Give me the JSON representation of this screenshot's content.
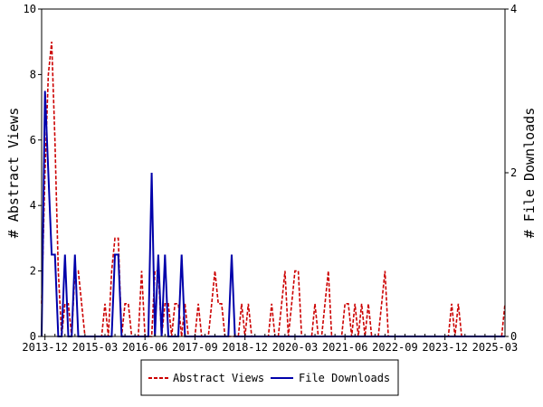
{
  "chart_data": {
    "type": "line",
    "x_tick_labels": [
      "2013-12",
      "2015-03",
      "2016-06",
      "2017-09",
      "2018-12",
      "2020-03",
      "2021-06",
      "2022-09",
      "2023-12",
      "2025-03"
    ],
    "x_range": [
      "2013-11",
      "2025-06"
    ],
    "y_left": {
      "label": "# Abstract Views",
      "range": [
        0,
        10
      ],
      "ticks": [
        0,
        2,
        4,
        6,
        8,
        10
      ]
    },
    "y_right": {
      "label": "# File Downloads",
      "range": [
        0,
        4
      ],
      "ticks": [
        0,
        2,
        4
      ]
    },
    "grid": false,
    "legend_position": "bottom",
    "series": [
      {
        "name": "Abstract Views",
        "axis": "left",
        "color": "#cc0000",
        "style": "dashed",
        "points": [
          [
            "2013-11",
            1
          ],
          [
            "2013-12",
            5
          ],
          [
            "2014-01",
            8
          ],
          [
            "2014-02",
            9
          ],
          [
            "2014-03",
            6
          ],
          [
            "2014-04",
            2
          ],
          [
            "2014-05",
            0
          ],
          [
            "2014-06",
            1
          ],
          [
            "2014-07",
            1
          ],
          [
            "2014-08",
            0
          ],
          [
            "2014-09",
            2
          ],
          [
            "2014-10",
            2
          ],
          [
            "2014-11",
            1
          ],
          [
            "2014-12",
            0
          ],
          [
            "2015-01",
            0
          ],
          [
            "2015-02",
            0
          ],
          [
            "2015-03",
            0
          ],
          [
            "2015-04",
            0
          ],
          [
            "2015-05",
            0
          ],
          [
            "2015-06",
            1
          ],
          [
            "2015-07",
            0
          ],
          [
            "2015-08",
            2
          ],
          [
            "2015-09",
            3
          ],
          [
            "2015-10",
            3
          ],
          [
            "2015-11",
            0
          ],
          [
            "2015-12",
            1
          ],
          [
            "2016-01",
            1
          ],
          [
            "2016-02",
            0
          ],
          [
            "2016-03",
            0
          ],
          [
            "2016-04",
            0
          ],
          [
            "2016-05",
            2
          ],
          [
            "2016-06",
            0
          ],
          [
            "2016-07",
            0
          ],
          [
            "2016-08",
            0
          ],
          [
            "2016-09",
            2
          ],
          [
            "2016-10",
            2
          ],
          [
            "2016-11",
            0
          ],
          [
            "2016-12",
            1
          ],
          [
            "2017-01",
            1
          ],
          [
            "2017-02",
            0
          ],
          [
            "2017-03",
            1
          ],
          [
            "2017-04",
            1
          ],
          [
            "2017-05",
            0
          ],
          [
            "2017-06",
            1
          ],
          [
            "2017-07",
            0
          ],
          [
            "2017-08",
            0
          ],
          [
            "2017-09",
            0
          ],
          [
            "2017-10",
            1
          ],
          [
            "2017-11",
            0
          ],
          [
            "2017-12",
            0
          ],
          [
            "2018-01",
            0
          ],
          [
            "2018-02",
            1
          ],
          [
            "2018-03",
            2
          ],
          [
            "2018-04",
            1
          ],
          [
            "2018-05",
            1
          ],
          [
            "2018-06",
            0
          ],
          [
            "2018-07",
            0
          ],
          [
            "2018-08",
            0
          ],
          [
            "2018-09",
            0
          ],
          [
            "2018-10",
            0
          ],
          [
            "2018-11",
            1
          ],
          [
            "2018-12",
            0
          ],
          [
            "2019-01",
            1
          ],
          [
            "2019-02",
            0
          ],
          [
            "2019-03",
            0
          ],
          [
            "2019-04",
            0
          ],
          [
            "2019-05",
            0
          ],
          [
            "2019-06",
            0
          ],
          [
            "2019-07",
            0
          ],
          [
            "2019-08",
            1
          ],
          [
            "2019-09",
            0
          ],
          [
            "2019-10",
            0
          ],
          [
            "2019-11",
            1
          ],
          [
            "2019-12",
            2
          ],
          [
            "2020-01",
            0
          ],
          [
            "2020-02",
            1
          ],
          [
            "2020-03",
            2
          ],
          [
            "2020-04",
            2
          ],
          [
            "2020-05",
            0
          ],
          [
            "2020-06",
            0
          ],
          [
            "2020-07",
            0
          ],
          [
            "2020-08",
            0
          ],
          [
            "2020-09",
            1
          ],
          [
            "2020-10",
            0
          ],
          [
            "2020-11",
            0
          ],
          [
            "2020-12",
            1
          ],
          [
            "2021-01",
            2
          ],
          [
            "2021-02",
            0
          ],
          [
            "2021-03",
            0
          ],
          [
            "2021-04",
            0
          ],
          [
            "2021-05",
            0
          ],
          [
            "2021-06",
            1
          ],
          [
            "2021-07",
            1
          ],
          [
            "2021-08",
            0
          ],
          [
            "2021-09",
            1
          ],
          [
            "2021-10",
            0
          ],
          [
            "2021-11",
            1
          ],
          [
            "2021-12",
            0
          ],
          [
            "2022-01",
            1
          ],
          [
            "2022-02",
            0
          ],
          [
            "2022-03",
            0
          ],
          [
            "2022-04",
            0
          ],
          [
            "2022-05",
            1
          ],
          [
            "2022-06",
            2
          ],
          [
            "2022-07",
            0
          ],
          [
            "2022-08",
            0
          ],
          [
            "2022-09",
            0
          ],
          [
            "2022-10",
            0
          ],
          [
            "2022-11",
            0
          ],
          [
            "2022-12",
            0
          ],
          [
            "2023-01",
            0
          ],
          [
            "2023-02",
            0
          ],
          [
            "2023-03",
            0
          ],
          [
            "2023-04",
            0
          ],
          [
            "2023-05",
            0
          ],
          [
            "2023-06",
            0
          ],
          [
            "2023-07",
            0
          ],
          [
            "2023-08",
            0
          ],
          [
            "2023-09",
            0
          ],
          [
            "2023-10",
            0
          ],
          [
            "2023-11",
            0
          ],
          [
            "2023-12",
            0
          ],
          [
            "2024-01",
            0
          ],
          [
            "2024-02",
            1
          ],
          [
            "2024-03",
            0
          ],
          [
            "2024-04",
            1
          ],
          [
            "2024-05",
            0
          ],
          [
            "2024-06",
            0
          ],
          [
            "2024-07",
            0
          ],
          [
            "2024-08",
            0
          ],
          [
            "2024-09",
            0
          ],
          [
            "2024-10",
            0
          ],
          [
            "2024-11",
            0
          ],
          [
            "2024-12",
            0
          ],
          [
            "2025-01",
            0
          ],
          [
            "2025-02",
            0
          ],
          [
            "2025-03",
            0
          ],
          [
            "2025-04",
            0
          ],
          [
            "2025-05",
            0
          ],
          [
            "2025-06",
            1
          ]
        ]
      },
      {
        "name": "File Downloads",
        "axis": "right",
        "color": "#0000aa",
        "style": "solid",
        "points": [
          [
            "2013-11",
            0
          ],
          [
            "2013-12",
            3
          ],
          [
            "2014-01",
            2
          ],
          [
            "2014-02",
            1
          ],
          [
            "2014-03",
            1
          ],
          [
            "2014-04",
            0
          ],
          [
            "2014-05",
            0
          ],
          [
            "2014-06",
            1
          ],
          [
            "2014-07",
            0
          ],
          [
            "2014-08",
            0
          ],
          [
            "2014-09",
            1
          ],
          [
            "2014-10",
            0
          ],
          [
            "2014-11",
            0
          ],
          [
            "2014-12",
            0
          ],
          [
            "2015-01",
            0
          ],
          [
            "2015-02",
            0
          ],
          [
            "2015-03",
            0
          ],
          [
            "2015-04",
            0
          ],
          [
            "2015-05",
            0
          ],
          [
            "2015-06",
            0
          ],
          [
            "2015-07",
            0
          ],
          [
            "2015-08",
            0
          ],
          [
            "2015-09",
            1
          ],
          [
            "2015-10",
            1
          ],
          [
            "2015-11",
            0
          ],
          [
            "2015-12",
            0
          ],
          [
            "2016-01",
            0
          ],
          [
            "2016-02",
            0
          ],
          [
            "2016-03",
            0
          ],
          [
            "2016-04",
            0
          ],
          [
            "2016-05",
            0
          ],
          [
            "2016-06",
            0
          ],
          [
            "2016-07",
            0
          ],
          [
            "2016-08",
            2
          ],
          [
            "2016-09",
            0
          ],
          [
            "2016-10",
            1
          ],
          [
            "2016-11",
            0
          ],
          [
            "2016-12",
            1
          ],
          [
            "2017-01",
            0
          ],
          [
            "2017-02",
            0
          ],
          [
            "2017-03",
            0
          ],
          [
            "2017-04",
            0
          ],
          [
            "2017-05",
            1
          ],
          [
            "2017-06",
            0
          ],
          [
            "2017-07",
            0
          ],
          [
            "2017-08",
            0
          ],
          [
            "2017-09",
            0
          ],
          [
            "2017-10",
            0
          ],
          [
            "2017-11",
            0
          ],
          [
            "2017-12",
            0
          ],
          [
            "2018-01",
            0
          ],
          [
            "2018-02",
            0
          ],
          [
            "2018-03",
            0
          ],
          [
            "2018-04",
            0
          ],
          [
            "2018-05",
            0
          ],
          [
            "2018-06",
            0
          ],
          [
            "2018-07",
            0
          ],
          [
            "2018-08",
            1
          ],
          [
            "2018-09",
            0
          ],
          [
            "2018-10",
            0
          ],
          [
            "2018-11",
            0
          ],
          [
            "2018-12",
            0
          ],
          [
            "2019-01",
            0
          ],
          [
            "2019-02",
            0
          ],
          [
            "2019-03",
            0
          ],
          [
            "2019-04",
            0
          ],
          [
            "2019-05",
            0
          ],
          [
            "2019-06",
            0
          ],
          [
            "2019-07",
            0
          ],
          [
            "2019-08",
            0
          ],
          [
            "2019-09",
            0
          ],
          [
            "2019-10",
            0
          ],
          [
            "2019-11",
            0
          ],
          [
            "2019-12",
            0
          ],
          [
            "2020-01",
            0
          ],
          [
            "2020-02",
            0
          ],
          [
            "2020-03",
            0
          ],
          [
            "2020-04",
            0
          ],
          [
            "2020-05",
            0
          ],
          [
            "2020-06",
            0
          ],
          [
            "2020-07",
            0
          ],
          [
            "2020-08",
            0
          ],
          [
            "2020-09",
            0
          ],
          [
            "2020-10",
            0
          ],
          [
            "2020-11",
            0
          ],
          [
            "2020-12",
            0
          ],
          [
            "2021-01",
            0
          ],
          [
            "2021-02",
            0
          ],
          [
            "2021-03",
            0
          ],
          [
            "2021-04",
            0
          ],
          [
            "2021-05",
            0
          ],
          [
            "2021-06",
            0
          ],
          [
            "2021-07",
            0
          ],
          [
            "2021-08",
            0
          ],
          [
            "2021-09",
            0
          ],
          [
            "2021-10",
            0
          ],
          [
            "2021-11",
            0
          ],
          [
            "2021-12",
            0
          ],
          [
            "2022-01",
            0
          ],
          [
            "2022-02",
            0
          ],
          [
            "2022-03",
            0
          ],
          [
            "2022-04",
            0
          ],
          [
            "2022-05",
            0
          ],
          [
            "2022-06",
            0
          ],
          [
            "2022-07",
            0
          ],
          [
            "2022-08",
            0
          ],
          [
            "2022-09",
            0
          ],
          [
            "2022-10",
            0
          ],
          [
            "2022-11",
            0
          ],
          [
            "2022-12",
            0
          ],
          [
            "2023-01",
            0
          ],
          [
            "2023-02",
            0
          ],
          [
            "2023-03",
            0
          ],
          [
            "2023-04",
            0
          ],
          [
            "2023-05",
            0
          ],
          [
            "2023-06",
            0
          ],
          [
            "2023-07",
            0
          ],
          [
            "2023-08",
            0
          ],
          [
            "2023-09",
            0
          ],
          [
            "2023-10",
            0
          ],
          [
            "2023-11",
            0
          ],
          [
            "2023-12",
            0
          ],
          [
            "2024-01",
            0
          ],
          [
            "2024-02",
            0
          ],
          [
            "2024-03",
            0
          ],
          [
            "2024-04",
            0
          ],
          [
            "2024-05",
            0
          ],
          [
            "2024-06",
            0
          ],
          [
            "2024-07",
            0
          ],
          [
            "2024-08",
            0
          ],
          [
            "2024-09",
            0
          ],
          [
            "2024-10",
            0
          ],
          [
            "2024-11",
            0
          ],
          [
            "2024-12",
            0
          ],
          [
            "2025-01",
            0
          ],
          [
            "2025-02",
            0
          ],
          [
            "2025-03",
            0
          ],
          [
            "2025-04",
            0
          ],
          [
            "2025-05",
            0
          ],
          [
            "2025-06",
            0
          ]
        ]
      }
    ]
  }
}
